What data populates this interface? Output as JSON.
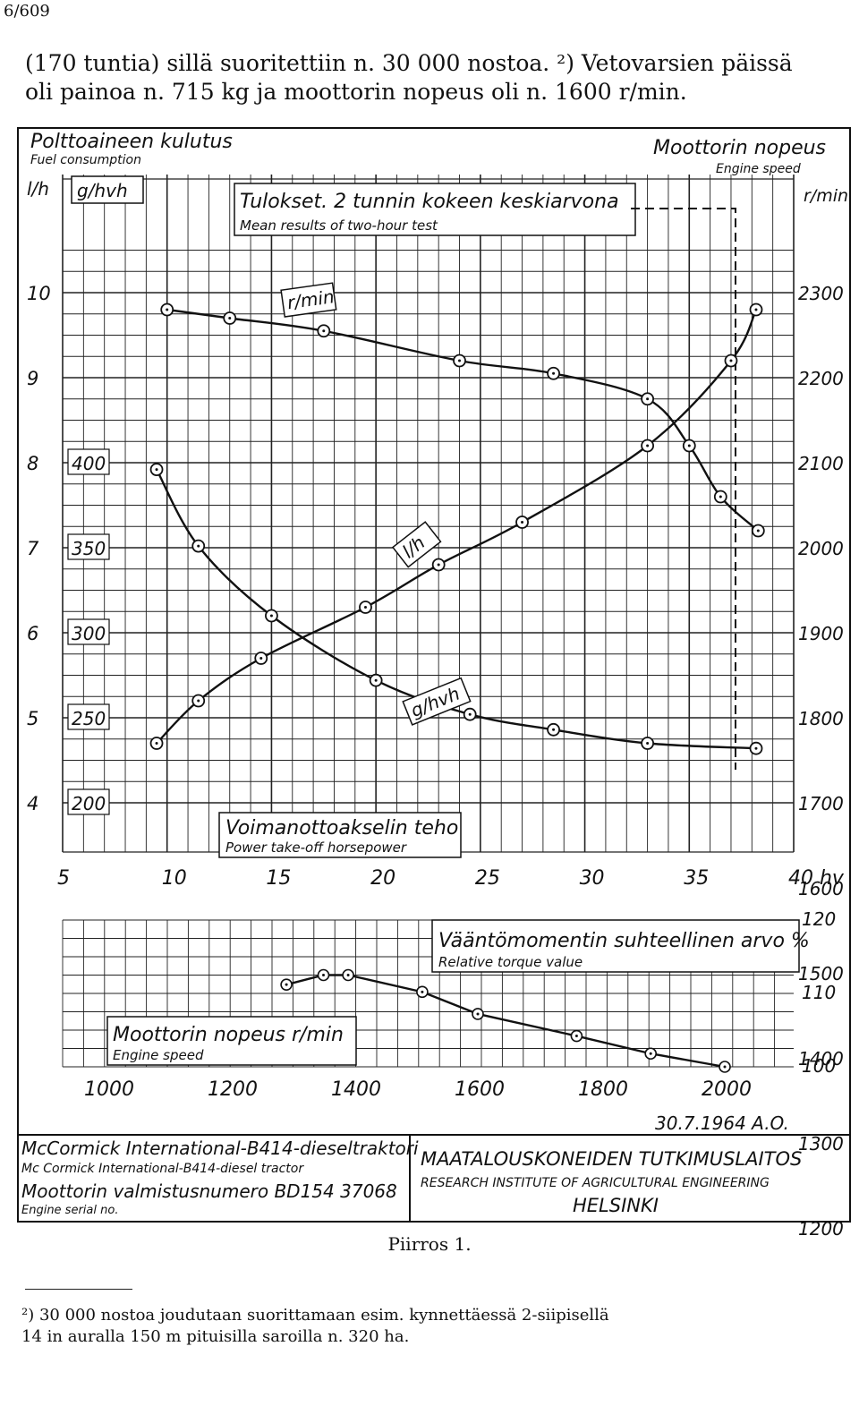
{
  "page": {
    "number": "6/609"
  },
  "intro": {
    "line1": "(170 tuntia) sillä suoritettiin n. 30 000 nostoa. ²) Vetovarsien päissä",
    "line2": "oli painoa n. 715 kg ja moottorin nopeus oli n. 1600 r/min."
  },
  "figure": {
    "top_left_title_fi": "Polttoaineen kulutus",
    "top_left_title_en": "Fuel consumption",
    "unit_lh": "l/h",
    "unit_ghvh": "g/hvh",
    "top_right_title_fi": "Moottorin nopeus",
    "top_right_title_en": "Engine speed",
    "unit_rmin": "r/min",
    "results_fi": "Tulokset. 2 tunnin kokeen keskiarvona",
    "results_en": "Mean results of two-hour test",
    "curve_label_rmin": "r/min",
    "curve_label_lh": "l/h",
    "curve_label_ghvh": "g/hvh",
    "pto_fi": "Voimanottoakselin teho",
    "pto_en": "Power take-off horsepower",
    "left_ticks_lh": [
      "10",
      "9",
      "8",
      "7",
      "6",
      "5",
      "4"
    ],
    "left_ticks_ghvh": [
      "400",
      "350",
      "300",
      "250",
      "200"
    ],
    "right_ticks_rpm": [
      "2300",
      "2200",
      "2100",
      "2000",
      "1900",
      "1800",
      "1700",
      "1600",
      "1500",
      "1400",
      "1300",
      "1200"
    ],
    "x_ticks_hp": [
      "5",
      "10",
      "15",
      "20",
      "25",
      "30",
      "35",
      "40 hv"
    ],
    "torque_title_fi": "Vääntömomentin suhteellinen arvo %",
    "torque_title_en": "Relative torque value",
    "torque_y_ticks": [
      "120",
      "110",
      "100"
    ],
    "speed_title_fi": "Moottorin nopeus r/min",
    "speed_title_en": "Engine speed",
    "speed_x_ticks": [
      "1000",
      "1200",
      "1400",
      "1600",
      "1800",
      "2000"
    ],
    "date": "30.7.1964 A.O.",
    "tractor_fi": "McCormick International-B414-dieseltraktori",
    "tractor_en": "Mc Cormick International-B414-diesel tractor",
    "serial_fi": "Moottorin valmistusnumero BD154 37068",
    "serial_en": "Engine serial no.",
    "institute_fi": "MAATALOUSKONEIDEN TUTKIMUSLAITOS",
    "institute_en": "RESEARCH INSTITUTE OF AGRICULTURAL ENGINEERING",
    "city": "HELSINKI"
  },
  "chart_data": [
    {
      "type": "line",
      "x_axis": "hv",
      "xlim": [
        5,
        40
      ],
      "series": [
        {
          "name": "r/min",
          "unit": "r/min",
          "x": [
            10,
            13,
            17.5,
            24,
            28.5,
            33,
            35,
            36.5,
            38.3
          ],
          "values": [
            2280,
            2270,
            2255,
            2220,
            2205,
            2175,
            2120,
            2060,
            2020
          ]
        },
        {
          "name": "l/h",
          "unit": "l/h",
          "x": [
            9.5,
            11.5,
            14.5,
            19.5,
            23,
            27,
            33,
            37,
            38.2
          ],
          "values": [
            4.7,
            5.2,
            5.7,
            6.3,
            6.8,
            7.3,
            8.2,
            9.2,
            9.8
          ]
        },
        {
          "name": "g/hvh",
          "unit": "g/hvh",
          "x": [
            9.5,
            11.5,
            15,
            20,
            24.5,
            28.5,
            33,
            38.2
          ],
          "values": [
            396,
            351,
            310,
            272,
            252,
            243,
            235,
            232
          ]
        }
      ]
    },
    {
      "type": "line",
      "x_axis": "r/min",
      "xlim": [
        1000,
        2000
      ],
      "ylim": [
        100,
        120
      ],
      "series": [
        {
          "name": "Vääntömomentin suhteellinen arvo %",
          "x": [
            1290,
            1350,
            1390,
            1510,
            1600,
            1760,
            1880,
            2000
          ],
          "values": [
            111.2,
            112.5,
            112.5,
            110.2,
            107.2,
            104.2,
            101.8,
            100
          ]
        }
      ]
    }
  ],
  "caption": "Piirros 1.",
  "footnote": {
    "line1": "²) 30 000 nostoa joudutaan suorittamaan esim. kynnettäessä 2-siipisellä",
    "line2": "14 in auralla 150 m pituisilla saroilla n. 320 ha."
  }
}
